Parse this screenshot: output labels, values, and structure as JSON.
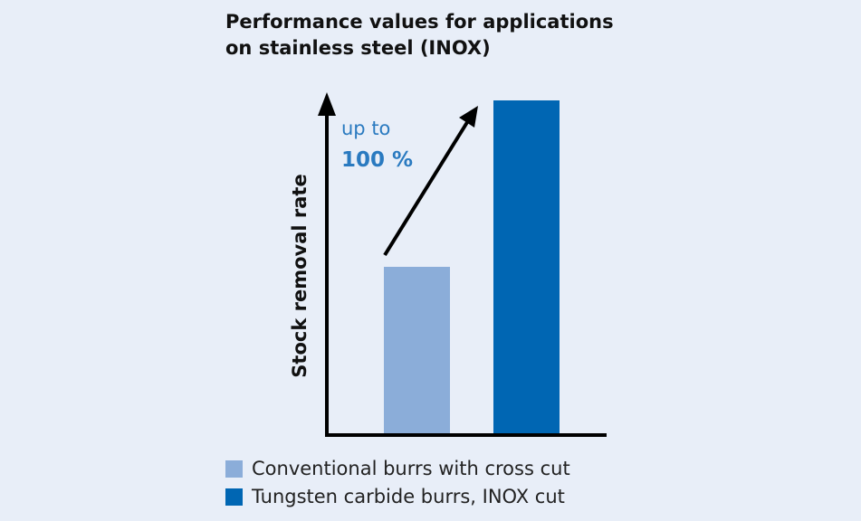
{
  "chart_data": {
    "type": "bar",
    "title_lines": [
      "Performance values for applications",
      "on stainless steel (INOX)"
    ],
    "ylabel": "Stock removal rate",
    "xlabel": "",
    "categories": [
      "Conventional burrs with cross cut",
      "Tungsten carbide burrs, INOX cut"
    ],
    "values": [
      50,
      100
    ],
    "ylim": [
      0,
      103
    ],
    "colors": [
      "#8badd9",
      "#0066b3"
    ],
    "annotation": {
      "line1": "up to",
      "line2": "100 %",
      "color": "#2a7ac0"
    },
    "legend_position": "bottom-left",
    "grid": false
  }
}
